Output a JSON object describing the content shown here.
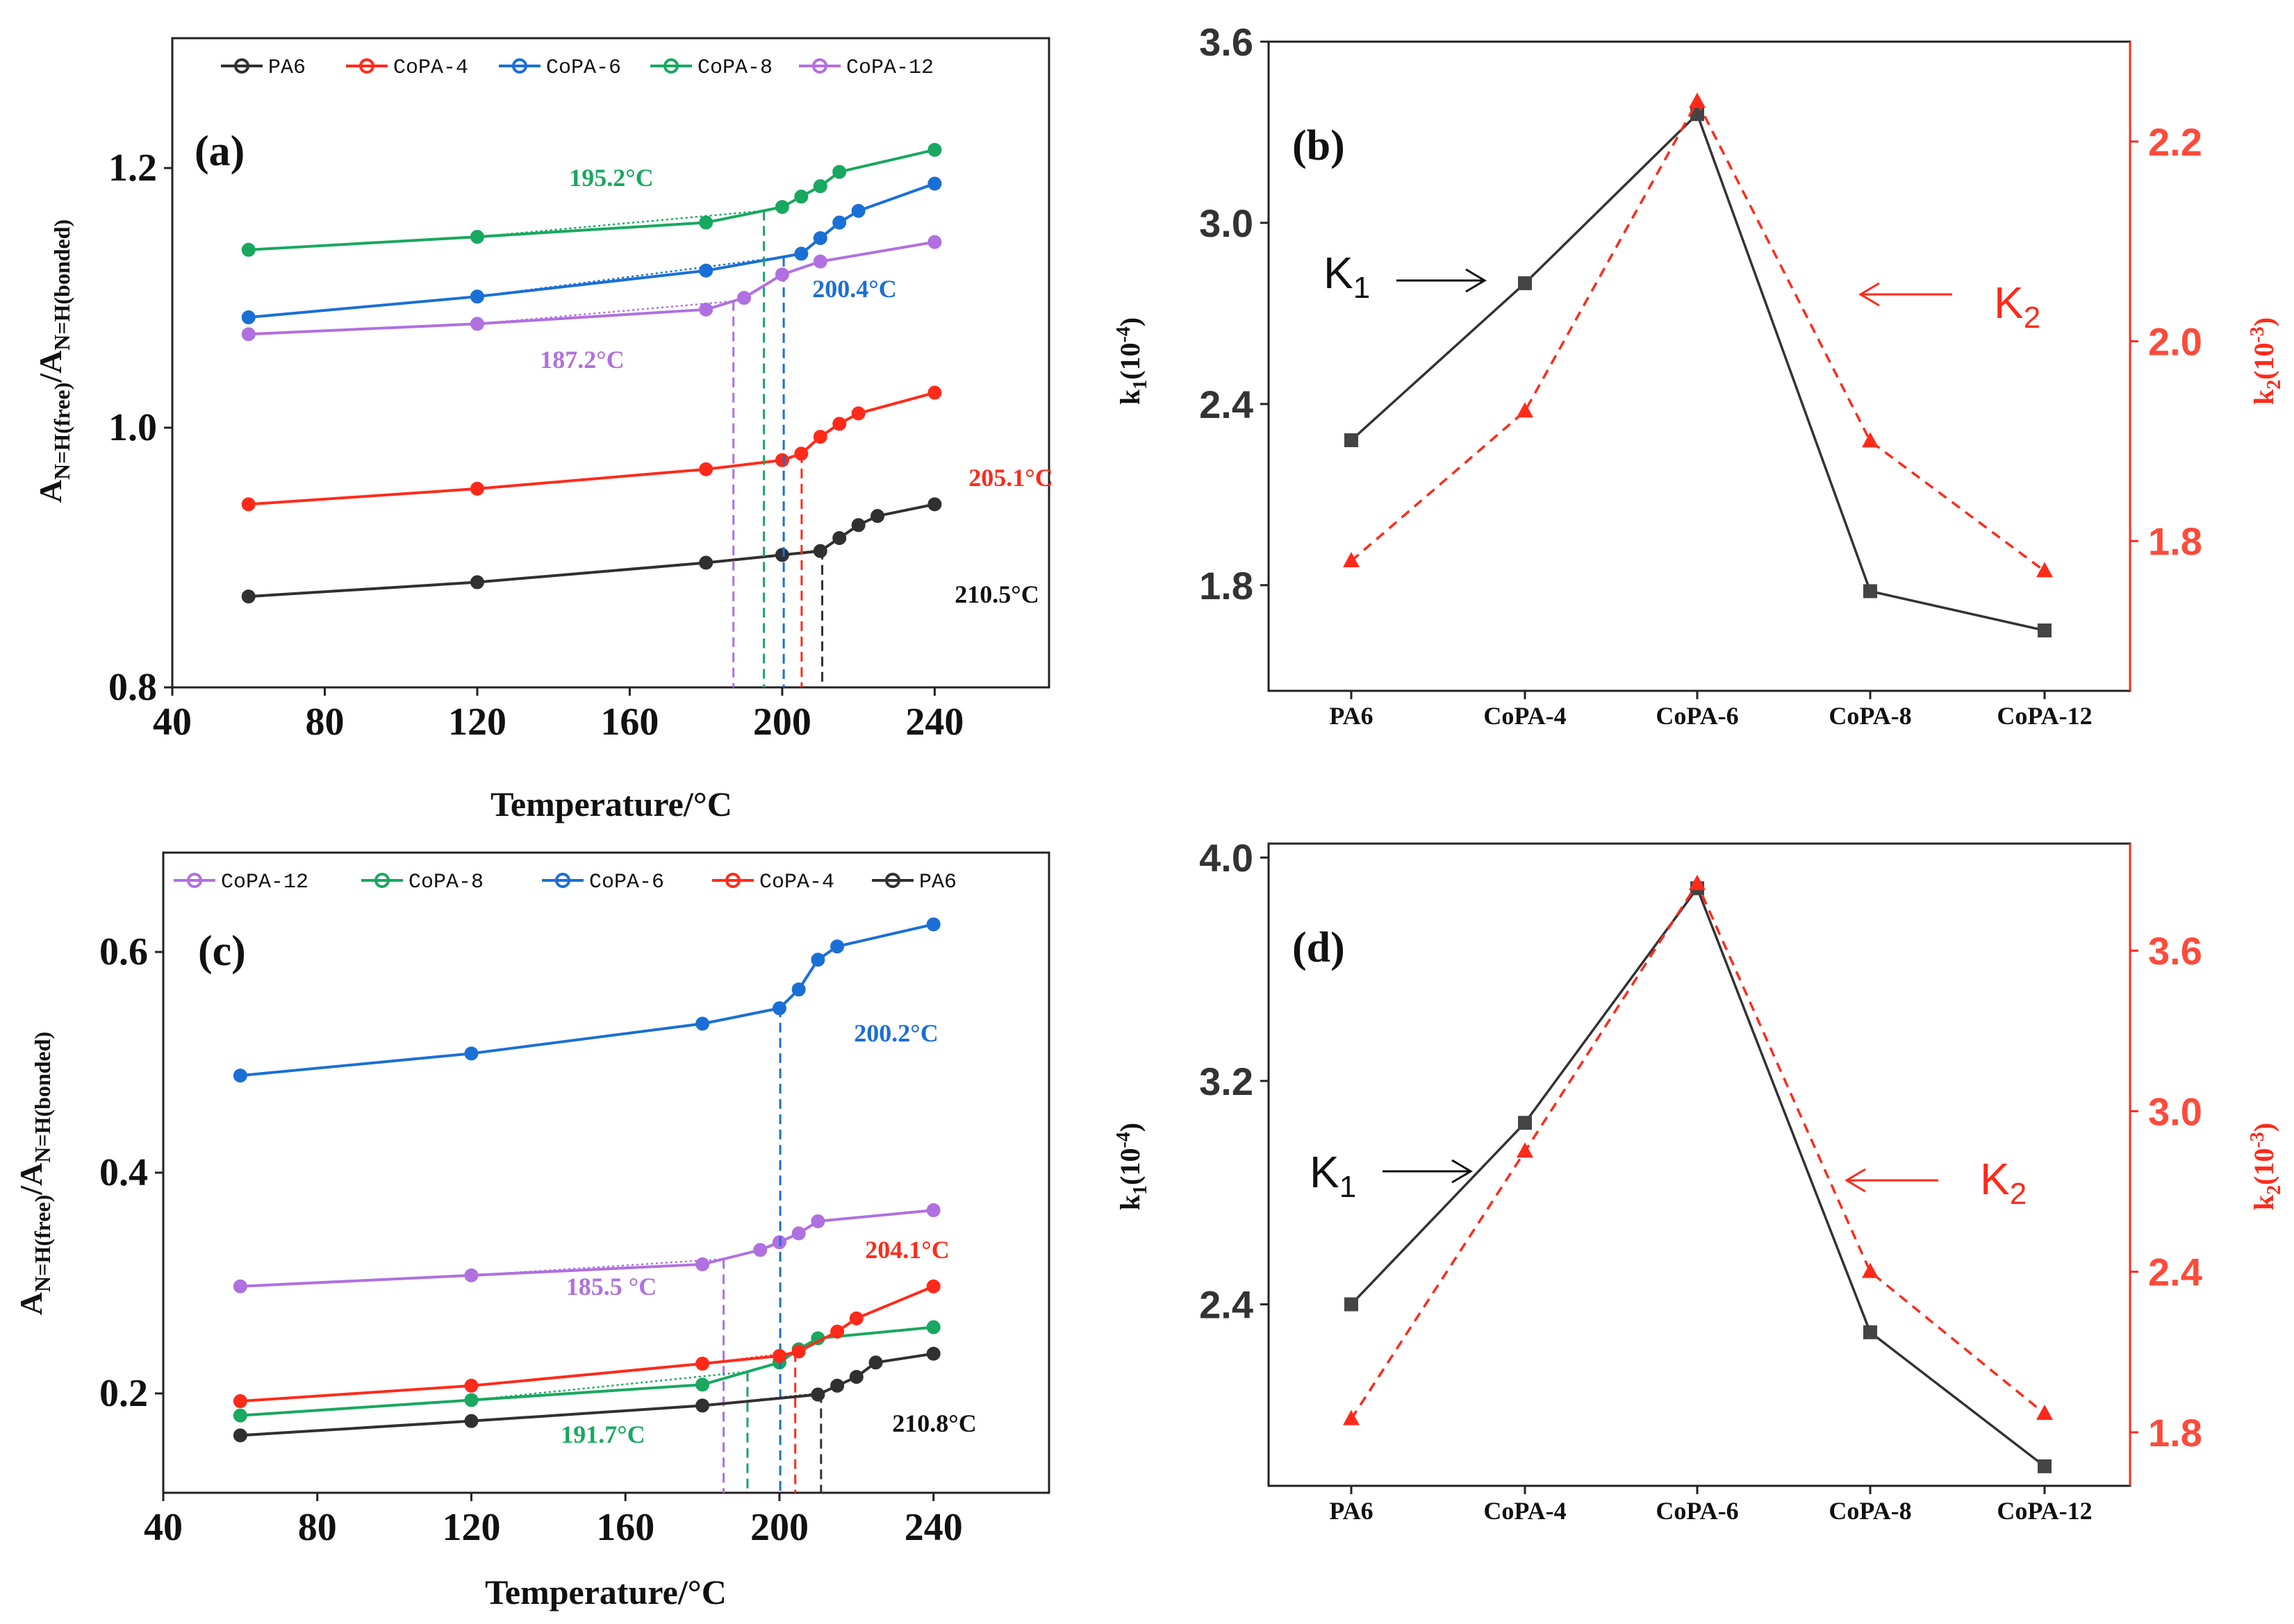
{
  "chart_data": [
    {
      "type": "line",
      "panel_label": "(a)",
      "xlabel": "Temperature/°C",
      "ylabel_main": "A",
      "ylabel_sub1": "N=H(free)",
      "ylabel_mid": "/A",
      "ylabel_sub2": "N=H(bonded)",
      "xlim": [
        40,
        270
      ],
      "ylim": [
        0.8,
        1.3
      ],
      "xticks": [
        "40",
        "80",
        "120",
        "160",
        "200",
        "240"
      ],
      "yticks": [
        "0.8",
        "1.0",
        "1.2"
      ],
      "legend_position": "top",
      "series": [
        {
          "name": "PA6",
          "color": "#303030",
          "x": [
            60,
            120,
            180,
            200,
            210,
            215,
            220,
            225,
            240
          ],
          "y": [
            0.87,
            0.881,
            0.896,
            0.902,
            0.905,
            0.915,
            0.925,
            0.932,
            0.941
          ],
          "onset_label": "210.5°C",
          "onset_x": 210.5
        },
        {
          "name": "CoPA-4",
          "color": "#ff2a1a",
          "x": [
            60,
            120,
            180,
            200,
            205,
            210,
            215,
            220,
            240
          ],
          "y": [
            0.941,
            0.953,
            0.968,
            0.975,
            0.98,
            0.993,
            1.003,
            1.011,
            1.027
          ],
          "onset_label": "205.1°C",
          "onset_x": 205.1
        },
        {
          "name": "CoPA-6",
          "color": "#1a6fd6",
          "x": [
            60,
            120,
            180,
            205,
            210,
            215,
            220,
            240
          ],
          "y": [
            1.085,
            1.101,
            1.121,
            1.134,
            1.146,
            1.158,
            1.167,
            1.188
          ],
          "onset_label": "200.4°C",
          "onset_x": 200.4
        },
        {
          "name": "CoPA-8",
          "color": "#18a860",
          "x": [
            60,
            120,
            180,
            200,
            205,
            210,
            215,
            240
          ],
          "y": [
            1.137,
            1.147,
            1.158,
            1.17,
            1.178,
            1.186,
            1.197,
            1.214
          ],
          "onset_label": "195.2°C",
          "onset_x": 195.2
        },
        {
          "name": "CoPA-12",
          "color": "#b070e0",
          "x": [
            60,
            120,
            180,
            190,
            200,
            210,
            240
          ],
          "y": [
            1.072,
            1.08,
            1.091,
            1.1,
            1.118,
            1.128,
            1.143
          ],
          "onset_label": "187.2°C",
          "onset_x": 187.2
        }
      ]
    },
    {
      "type": "line",
      "panel_label": "(b)",
      "categories": [
        "PA6",
        "CoPA-4",
        "CoPA-6",
        "CoPA-8",
        "CoPA-12"
      ],
      "ylabel_left": "k",
      "ylabel_left_sub": "1",
      "ylabel_left_unit": "(10",
      "ylabel_left_exp": "-4",
      "ylabel_left_close": ")",
      "ylabel_right": "k",
      "ylabel_right_sub": "2",
      "ylabel_right_unit": "(10",
      "ylabel_right_exp": "-3",
      "ylabel_right_close": ")",
      "ylim_left": [
        1.45,
        3.6
      ],
      "ylim_right": [
        1.65,
        2.3
      ],
      "yticks_left": [
        "1.8",
        "2.4",
        "3.0",
        "3.6"
      ],
      "yticks_right": [
        "1.8",
        "2.0",
        "2.2"
      ],
      "k1_label": "K",
      "k1_label_sub": "1",
      "k2_label": "K",
      "k2_label_sub": "2",
      "series": [
        {
          "name": "K1",
          "axis": "left",
          "color": "#333333",
          "values": [
            2.28,
            2.8,
            3.36,
            1.78,
            1.65
          ]
        },
        {
          "name": "K2",
          "axis": "right",
          "color": "#ff2a1a",
          "values": [
            1.78,
            1.93,
            2.24,
            1.9,
            1.77
          ]
        }
      ]
    },
    {
      "type": "line",
      "panel_label": "(c)",
      "xlabel": "Temperature/°C",
      "ylabel_main": "A",
      "ylabel_sub1": "N=H(free)",
      "ylabel_mid": "/A",
      "ylabel_sub2": "N=H(bonded)",
      "xlim": [
        40,
        270
      ],
      "ylim": [
        0.11,
        0.69
      ],
      "xticks": [
        "40",
        "80",
        "120",
        "160",
        "200",
        "240"
      ],
      "yticks": [
        "0.2",
        "0.4",
        "0.6"
      ],
      "legend_position": "top",
      "series": [
        {
          "name": "CoPA-12",
          "color": "#b070e0",
          "x": [
            60,
            120,
            180,
            195,
            200,
            205,
            210,
            240
          ],
          "y": [
            0.297,
            0.307,
            0.317,
            0.33,
            0.337,
            0.345,
            0.356,
            0.366
          ],
          "onset_label": "185.5 °C",
          "onset_x": 185.5
        },
        {
          "name": "CoPA-8",
          "color": "#18a860",
          "x": [
            60,
            120,
            180,
            200,
            205,
            210,
            240
          ],
          "y": [
            0.18,
            0.194,
            0.208,
            0.228,
            0.24,
            0.25,
            0.26
          ],
          "onset_label": "191.7°C",
          "onset_x": 191.7
        },
        {
          "name": "CoPA-6",
          "color": "#1a6fd6",
          "x": [
            60,
            120,
            180,
            200,
            205,
            210,
            215,
            240
          ],
          "y": [
            0.488,
            0.508,
            0.535,
            0.549,
            0.566,
            0.593,
            0.605,
            0.625
          ],
          "onset_label": "200.2°C",
          "onset_x": 200.2
        },
        {
          "name": "CoPA-4",
          "color": "#ff2a1a",
          "x": [
            60,
            120,
            180,
            200,
            205,
            215,
            220,
            240
          ],
          "y": [
            0.193,
            0.207,
            0.227,
            0.234,
            0.238,
            0.256,
            0.268,
            0.297
          ],
          "onset_label": "204.1°C",
          "onset_x": 204.1
        },
        {
          "name": "PA6",
          "color": "#303030",
          "x": [
            60,
            120,
            180,
            210,
            215,
            220,
            225,
            240
          ],
          "y": [
            0.162,
            0.175,
            0.189,
            0.199,
            0.207,
            0.215,
            0.228,
            0.236
          ],
          "onset_label": "210.8°C",
          "onset_x": 210.8
        }
      ]
    },
    {
      "type": "line",
      "panel_label": "(d)",
      "categories": [
        "PA6",
        "CoPA-4",
        "CoPA-6",
        "CoPA-8",
        "CoPA-12"
      ],
      "ylabel_left": "k",
      "ylabel_left_sub": "1",
      "ylabel_left_unit": "(10",
      "ylabel_left_exp": "-4",
      "ylabel_left_close": ")",
      "ylabel_right": "k",
      "ylabel_right_sub": "2",
      "ylabel_right_unit": "(10",
      "ylabel_right_exp": "-3",
      "ylabel_right_close": ")",
      "ylim_left": [
        1.75,
        4.05
      ],
      "ylim_right": [
        1.6,
        4.0
      ],
      "yticks_left": [
        "2.4",
        "3.2",
        "4.0"
      ],
      "yticks_right": [
        "1.8",
        "2.4",
        "3.0",
        "3.6"
      ],
      "k1_label": "K",
      "k1_label_sub": "1",
      "k2_label": "K",
      "k2_label_sub": "2",
      "series": [
        {
          "name": "K1",
          "axis": "left",
          "color": "#333333",
          "values": [
            2.4,
            3.05,
            3.89,
            2.3,
            1.82
          ]
        },
        {
          "name": "K2",
          "axis": "right",
          "color": "#ff2a1a",
          "values": [
            1.85,
            2.85,
            3.85,
            2.4,
            1.87
          ]
        }
      ]
    }
  ]
}
